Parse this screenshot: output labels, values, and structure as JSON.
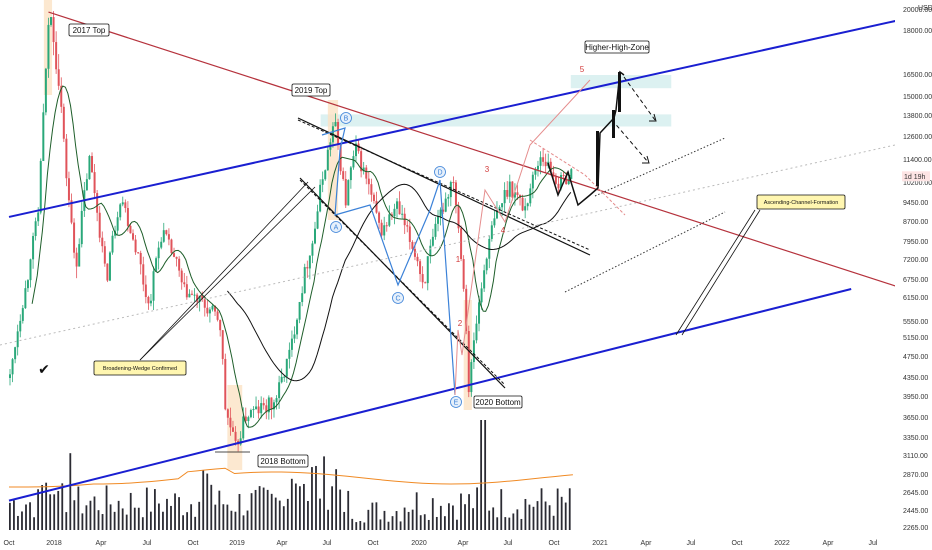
{
  "chart_data": {
    "type": "candlestick",
    "currency": "USD",
    "y_ticks": [
      20000,
      18000,
      16500,
      15000,
      13800,
      12600,
      11400,
      10200,
      9450,
      8700,
      7950,
      7200,
      6750,
      6150,
      5550,
      5150,
      4750,
      4350,
      3950,
      3650,
      3350,
      3110,
      2870,
      2645,
      2445,
      2265
    ],
    "x_ticks": [
      "Oct",
      "2018",
      "Apr",
      "Jul",
      "Oct",
      "2019",
      "Apr",
      "Jul",
      "Oct",
      "2020",
      "Apr",
      "Jul",
      "Oct",
      "2021",
      "Apr",
      "Jul",
      "Oct",
      "2022",
      "Apr",
      "Jul"
    ],
    "price_badge": "1d 19h",
    "price_badge_value": 10550,
    "price_path": [
      {
        "date": "2017-10-01",
        "close": 4350
      },
      {
        "date": "2017-11-01",
        "close": 6500
      },
      {
        "date": "2017-11-25",
        "close": 9000
      },
      {
        "date": "2017-12-17",
        "close": 19700
      },
      {
        "date": "2018-01-05",
        "close": 16000
      },
      {
        "date": "2018-01-17",
        "close": 11000
      },
      {
        "date": "2018-02-06",
        "close": 6900
      },
      {
        "date": "2018-03-05",
        "close": 11400
      },
      {
        "date": "2018-04-06",
        "close": 6600
      },
      {
        "date": "2018-05-05",
        "close": 9800
      },
      {
        "date": "2018-06-29",
        "close": 5900
      },
      {
        "date": "2018-07-25",
        "close": 8400
      },
      {
        "date": "2018-09-05",
        "close": 6400
      },
      {
        "date": "2018-11-14",
        "close": 5600
      },
      {
        "date": "2018-11-25",
        "close": 3800
      },
      {
        "date": "2018-12-15",
        "close": 3200
      },
      {
        "date": "2019-01-05",
        "close": 3700
      },
      {
        "date": "2019-03-01",
        "close": 3850
      },
      {
        "date": "2019-04-02",
        "close": 4900
      },
      {
        "date": "2019-05-15",
        "close": 8000
      },
      {
        "date": "2019-06-26",
        "close": 13500
      },
      {
        "date": "2019-07-17",
        "close": 9400
      },
      {
        "date": "2019-08-06",
        "close": 12000
      },
      {
        "date": "2019-09-24",
        "close": 8300
      },
      {
        "date": "2019-10-26",
        "close": 9300
      },
      {
        "date": "2019-12-17",
        "close": 6600
      },
      {
        "date": "2020-01-15",
        "close": 8800
      },
      {
        "date": "2020-02-13",
        "close": 10500
      },
      {
        "date": "2020-03-12",
        "close": 4900
      },
      {
        "date": "2020-03-13",
        "close": 4000
      },
      {
        "date": "2020-04-30",
        "close": 8600
      },
      {
        "date": "2020-06-01",
        "close": 10200
      },
      {
        "date": "2020-07-01",
        "close": 9200
      },
      {
        "date": "2020-08-02",
        "close": 11700
      },
      {
        "date": "2020-09-05",
        "close": 10200
      },
      {
        "date": "2020-10-01",
        "close": 10700
      }
    ],
    "volume_bars": 140,
    "volume_peak_month": "2020-03",
    "blue_channel": [
      {
        "points": [
          [
            "2017-10-01",
            8900
          ],
          [
            "2022-10-01",
            20000
          ]
        ]
      },
      {
        "points": [
          [
            "2017-10-01",
            2560
          ],
          [
            "2022-04-01",
            6450
          ]
        ]
      }
    ],
    "red_trendline": {
      "points": [
        [
          "2017-12-17",
          19800
        ],
        [
          "2022-10-01",
          6050
        ]
      ]
    },
    "supply_zones": [
      {
        "from": "2020-10-01",
        "to": "2021-04-15",
        "low": 15600,
        "high": 16500
      },
      {
        "from": "2019-06-01",
        "to": "2021-04-15",
        "low": 13200,
        "high": 13900
      }
    ],
    "projection": [
      [
        "2020-10-01",
        10700
      ],
      [
        "2020-11-01",
        9200
      ],
      [
        "2020-12-01",
        9850
      ],
      [
        "2020-12-31",
        13500
      ],
      [
        "2021-02-15",
        15500
      ],
      [
        "2021-03-01",
        16700
      ]
    ],
    "annotations": [
      {
        "text": "2017 Top",
        "date": "2017-12-20",
        "price": 20000
      },
      {
        "text": "2019 Top",
        "date": "2019-06-26",
        "price": 14000
      },
      {
        "text": "2020 Bottom",
        "date": "2020-04-10",
        "price": 3800
      },
      {
        "text": "2018 Bottom",
        "date": "2018-12-20",
        "price": 3200
      },
      {
        "text": "Higher-High-Zone",
        "date": "2021-02-20",
        "price": 18000
      },
      {
        "text": "Broadening-Wedge Confirmed",
        "date": "2018-07-01",
        "price": 4800
      },
      {
        "text": "Ascending-Channel-Formation",
        "date": "2021-11-15",
        "price": 9300
      }
    ],
    "wave_labels": [
      "A",
      "B",
      "C",
      "D",
      "E"
    ],
    "count_labels": [
      "1",
      "2",
      "3",
      "4",
      "5"
    ],
    "checkmark": "✔"
  }
}
